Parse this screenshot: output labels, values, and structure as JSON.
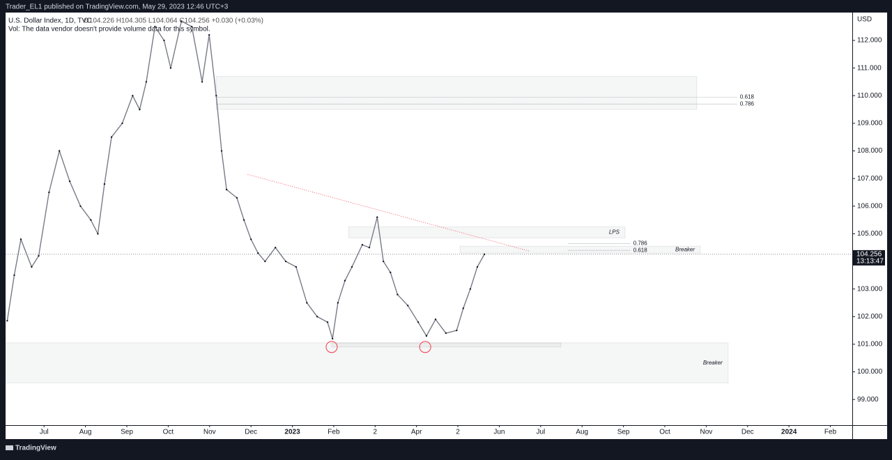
{
  "header": {
    "published": "Trader_EL1 published on TradingView.com, May 29, 2023 12:46 UTC+3",
    "symbol": "U.S. Dollar Index, 1D, TVC",
    "ohlc": "O104.226 H104.305 L104.064 C104.256 +0.030 (+0.03%)",
    "volume_note": "Vol: The data vendor doesn't provide volume data for this symbol."
  },
  "footer": {
    "brand": "TradingView"
  },
  "chart_data": {
    "type": "line",
    "currency": "USD",
    "color": "#787b86",
    "x": [
      -0.89,
      -0.72,
      -0.56,
      -0.3,
      -0.13,
      0.12,
      0.37,
      0.62,
      0.88,
      1.13,
      1.3,
      1.46,
      1.63,
      1.89,
      2.14,
      2.31,
      2.47,
      2.68,
      2.9,
      3.06,
      3.32,
      3.57,
      3.82,
      3.99,
      4.16,
      4.29,
      4.41,
      4.66,
      4.83,
      5.0,
      5.17,
      5.34,
      5.59,
      5.84,
      6.09,
      6.35,
      6.6,
      6.85,
      6.97,
      7.1,
      7.27,
      7.44,
      7.69,
      7.86,
      8.05,
      8.2,
      8.37,
      8.54,
      8.79,
      9.04,
      9.24,
      9.46,
      9.71,
      9.97,
      10.13,
      10.3,
      10.47,
      10.64
    ],
    "values": [
      101.85,
      103.5,
      104.8,
      103.8,
      104.2,
      106.5,
      108.0,
      106.9,
      106.0,
      105.5,
      105.0,
      106.8,
      108.5,
      109.0,
      110.0,
      109.5,
      110.5,
      112.5,
      112.0,
      111.0,
      112.7,
      112.5,
      110.5,
      112.2,
      110.0,
      108.0,
      106.6,
      106.3,
      105.5,
      104.8,
      104.3,
      104.0,
      104.5,
      104.0,
      103.8,
      102.5,
      102.0,
      101.8,
      101.2,
      102.5,
      103.3,
      103.8,
      104.6,
      104.5,
      105.6,
      104.0,
      103.6,
      102.8,
      102.4,
      101.8,
      101.3,
      101.9,
      101.4,
      101.5,
      102.3,
      103.0,
      103.8,
      104.256
    ],
    "last_price": {
      "value": 104.256,
      "label": "104.256"
    },
    "countdown": "13:13:47",
    "xlim": [
      -0.93,
      19.53
    ],
    "ylim": [
      98.07,
      113.01
    ],
    "xticks": [
      {
        "value": 0,
        "label": "Jul"
      },
      {
        "value": 1,
        "label": "Aug"
      },
      {
        "value": 2,
        "label": "Sep"
      },
      {
        "value": 3,
        "label": "Oct"
      },
      {
        "value": 4,
        "label": "Nov"
      },
      {
        "value": 5,
        "label": "Dec"
      },
      {
        "value": 6,
        "label": "2023"
      },
      {
        "value": 7,
        "label": "Feb"
      },
      {
        "value": 8,
        "label": "2"
      },
      {
        "value": 9,
        "label": "Apr"
      },
      {
        "value": 10,
        "label": "2"
      },
      {
        "value": 11,
        "label": "Jun"
      },
      {
        "value": 12,
        "label": "Jul"
      },
      {
        "value": 13,
        "label": "Aug"
      },
      {
        "value": 14,
        "label": "Sep"
      },
      {
        "value": 15,
        "label": "Oct"
      },
      {
        "value": 16,
        "label": "Nov"
      },
      {
        "value": 17,
        "label": "Dec"
      },
      {
        "value": 18,
        "label": "2024"
      },
      {
        "value": 19,
        "label": "Feb"
      }
    ],
    "yticks": [
      {
        "value": 99,
        "label": "99.000"
      },
      {
        "value": 100,
        "label": "100.000"
      },
      {
        "value": 101,
        "label": "101.000"
      },
      {
        "value": 102,
        "label": "102.000"
      },
      {
        "value": 103,
        "label": "103.000"
      },
      {
        "value": 104,
        "label": "104.000"
      },
      {
        "value": 105,
        "label": "105.000"
      },
      {
        "value": 106,
        "label": "106.000"
      },
      {
        "value": 107,
        "label": "107.000"
      },
      {
        "value": 108,
        "label": "108.000"
      },
      {
        "value": 109,
        "label": "109.000"
      },
      {
        "value": 110,
        "label": "110.000"
      },
      {
        "value": 111,
        "label": "111.000"
      },
      {
        "value": 112,
        "label": "112.000"
      }
    ],
    "zones": [
      {
        "x": [
          4.16,
          15.77
        ],
        "y": [
          109.5,
          110.7
        ]
      },
      {
        "x": [
          7.36,
          14.04
        ],
        "y": [
          104.85,
          105.25
        ],
        "label": "LPS"
      },
      {
        "x": [
          10.05,
          15.86
        ],
        "y": [
          104.3,
          104.55
        ],
        "label": "Breaker"
      },
      {
        "x": [
          -0.93,
          16.53
        ],
        "y": [
          99.6,
          101.05
        ],
        "label": "Breaker"
      },
      {
        "x": [
          6.95,
          12.49
        ],
        "y": [
          100.9,
          101.05
        ]
      }
    ],
    "fib_lines": [
      {
        "x": [
          4.16,
          16.75
        ],
        "price": 109.95,
        "label": "0.618"
      },
      {
        "x": [
          4.16,
          16.75
        ],
        "price": 109.7,
        "label": "0.786"
      },
      {
        "x": [
          12.66,
          14.17
        ],
        "price": 104.65,
        "label": "0.786"
      },
      {
        "x": [
          12.66,
          14.17
        ],
        "price": 104.4,
        "label": "0.618"
      }
    ],
    "trendline": {
      "x": [
        4.92,
        11.73
      ],
      "y": [
        107.15,
        104.37
      ]
    },
    "circles": {
      "x": [
        6.95,
        9.21
      ],
      "y": [
        100.9,
        100.9
      ]
    }
  }
}
